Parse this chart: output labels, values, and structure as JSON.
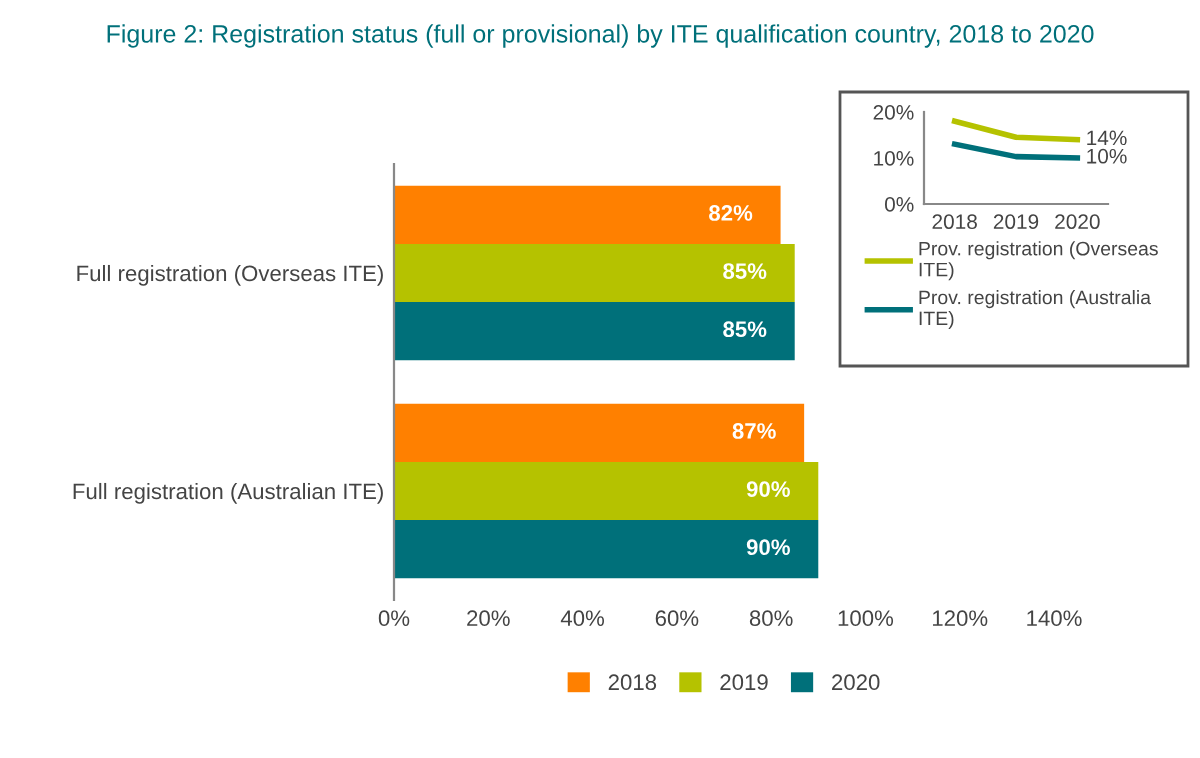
{
  "chart_data": [
    {
      "type": "bar",
      "title": "Figure 2: Registration status (full or provisional) by ITE qualification country, 2018 to 2020",
      "orientation": "horizontal",
      "categories": [
        "Full registration (Overseas ITE)",
        "Full registration (Australian ITE)"
      ],
      "series": [
        {
          "name": "2018",
          "color": "#ff8000",
          "values": [
            82,
            87
          ],
          "value_labels": [
            "82%",
            "87%"
          ]
        },
        {
          "name": "2019",
          "color": "#b5c200",
          "values": [
            85,
            90
          ],
          "value_labels": [
            "85%",
            "90%"
          ]
        },
        {
          "name": "2020",
          "color": "#00707a",
          "values": [
            85,
            90
          ],
          "value_labels": [
            "85%",
            "90%"
          ]
        }
      ],
      "xlim": [
        0,
        140
      ],
      "xticks": [
        {
          "value": 0,
          "label": "0%"
        },
        {
          "value": 20,
          "label": "20%"
        },
        {
          "value": 40,
          "label": "40%"
        },
        {
          "value": 60,
          "label": "60%"
        },
        {
          "value": 80,
          "label": "80%"
        },
        {
          "value": 100,
          "label": "100%"
        },
        {
          "value": 120,
          "label": "120%"
        },
        {
          "value": 140,
          "label": "140%"
        }
      ],
      "legend": "bottom",
      "grid": false
    },
    {
      "type": "line",
      "categories": [
        "2018",
        "2019",
        "2020"
      ],
      "series": [
        {
          "name": "Prov. registration (Overseas ITE)",
          "color": "#b5c200",
          "values": [
            18,
            14.5,
            14
          ],
          "value_labels": [
            null,
            null,
            "14%"
          ]
        },
        {
          "name": "Prov. registration (Australia ITE)",
          "color": "#00707a",
          "values": [
            13,
            10.3,
            10
          ],
          "value_labels": [
            null,
            null,
            "10%"
          ]
        }
      ],
      "ylim": [
        0,
        20
      ],
      "yticks": [
        {
          "value": 0,
          "label": "0%"
        },
        {
          "value": 10,
          "label": "10%"
        },
        {
          "value": 20,
          "label": "20%"
        }
      ],
      "legend": "bottom",
      "grid": false,
      "marker": "none",
      "line_style": "solid"
    }
  ]
}
